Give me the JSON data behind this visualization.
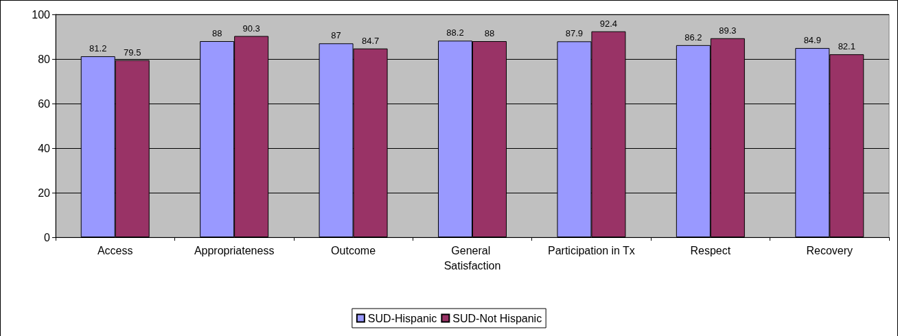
{
  "chart_data": {
    "type": "bar",
    "categories": [
      "Access",
      "Appropriateness",
      "Outcome",
      "General Satisfaction",
      "Participation in Tx",
      "Respect",
      "Recovery"
    ],
    "series": [
      {
        "name": "SUD-Hispanic",
        "color": "#9999ff",
        "values": [
          81.2,
          88,
          87,
          88.2,
          87.9,
          86.2,
          84.9
        ]
      },
      {
        "name": "SUD-Not Hispanic",
        "color": "#993366",
        "values": [
          79.5,
          90.3,
          84.7,
          88,
          92.4,
          89.3,
          82.1
        ]
      }
    ],
    "ylim": [
      0,
      100
    ],
    "yticks": [
      0,
      20,
      40,
      60,
      80,
      100
    ],
    "grid": "y",
    "legend": "bottom",
    "data_labels": true
  }
}
